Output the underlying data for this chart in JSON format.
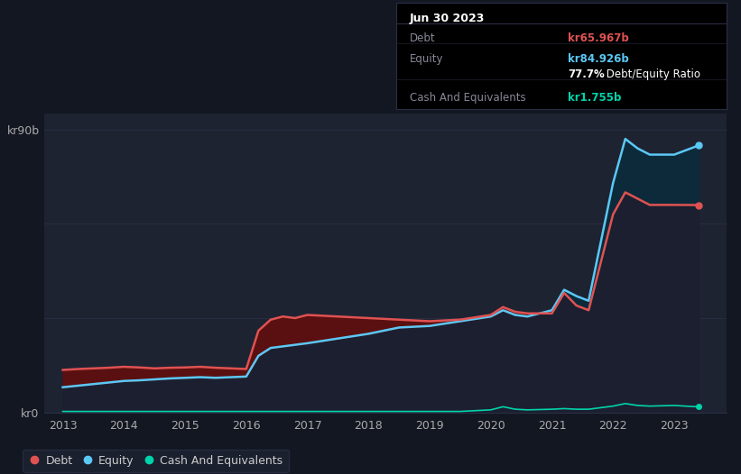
{
  "background_color": "#131722",
  "plot_bg_color": "#1e2332",
  "grid_color": "#2a2e45",
  "title_box": {
    "date": "Jun 30 2023",
    "debt_label": "Debt",
    "debt_value": "kr65.967b",
    "equity_label": "Equity",
    "equity_value": "kr84.926b",
    "ratio_text": "77.7%",
    "ratio_suffix": " Debt/Equity Ratio",
    "cash_label": "Cash And Equivalents",
    "cash_value": "kr1.755b",
    "date_color": "#ffffff",
    "label_color": "#888899",
    "debt_val_color": "#e05252",
    "equity_val_color": "#5bc8f5",
    "ratio_color": "#ffffff",
    "cash_val_color": "#00d4aa"
  },
  "years": [
    2013.0,
    2013.25,
    2013.5,
    2013.75,
    2014.0,
    2014.25,
    2014.5,
    2014.75,
    2015.0,
    2015.25,
    2015.5,
    2015.75,
    2016.0,
    2016.2,
    2016.4,
    2016.6,
    2016.8,
    2017.0,
    2017.5,
    2018.0,
    2018.5,
    2019.0,
    2019.5,
    2020.0,
    2020.2,
    2020.4,
    2020.6,
    2021.0,
    2021.2,
    2021.4,
    2021.6,
    2022.0,
    2022.2,
    2022.4,
    2022.6,
    2023.0,
    2023.4
  ],
  "debt": [
    13.5,
    13.8,
    14.0,
    14.2,
    14.5,
    14.3,
    14.0,
    14.2,
    14.3,
    14.5,
    14.2,
    14.0,
    13.8,
    26.0,
    29.5,
    30.5,
    30.0,
    31.0,
    30.5,
    30.0,
    29.5,
    29.0,
    29.5,
    31.0,
    33.5,
    32.0,
    31.5,
    31.5,
    38.0,
    34.0,
    32.5,
    63.0,
    70.0,
    68.0,
    66.0,
    66.0,
    65.967
  ],
  "equity": [
    8.0,
    8.5,
    9.0,
    9.5,
    10.0,
    10.2,
    10.5,
    10.8,
    11.0,
    11.2,
    11.0,
    11.2,
    11.4,
    18.0,
    20.5,
    21.0,
    21.5,
    22.0,
    23.5,
    25.0,
    27.0,
    27.5,
    29.0,
    30.5,
    32.5,
    31.0,
    30.5,
    32.5,
    39.0,
    37.0,
    35.5,
    73.0,
    87.0,
    84.0,
    82.0,
    82.0,
    84.926
  ],
  "cash": [
    0.3,
    0.3,
    0.3,
    0.3,
    0.3,
    0.3,
    0.3,
    0.3,
    0.3,
    0.3,
    0.3,
    0.3,
    0.3,
    0.3,
    0.3,
    0.3,
    0.3,
    0.3,
    0.3,
    0.3,
    0.3,
    0.3,
    0.3,
    0.8,
    1.8,
    1.0,
    0.8,
    1.0,
    1.2,
    1.0,
    1.0,
    2.0,
    2.8,
    2.2,
    2.0,
    2.2,
    1.755
  ],
  "debt_color": "#e05252",
  "equity_color": "#5bc8f5",
  "cash_color": "#00d4aa",
  "debt_fill_color": "#5a1010",
  "equity_fill_color": "#0d2a3a",
  "base_fill_color": "#1c1f30",
  "ylabel_top": "kr90b",
  "ylabel_bottom": "kr0",
  "xticks": [
    2013,
    2014,
    2015,
    2016,
    2017,
    2018,
    2019,
    2020,
    2021,
    2022,
    2023
  ],
  "ylim": [
    0,
    95
  ],
  "xlim": [
    2012.7,
    2023.85
  ],
  "legend_items": [
    {
      "label": "Debt",
      "color": "#e05252"
    },
    {
      "label": "Equity",
      "color": "#5bc8f5"
    },
    {
      "label": "Cash And Equivalents",
      "color": "#00d4aa"
    }
  ]
}
